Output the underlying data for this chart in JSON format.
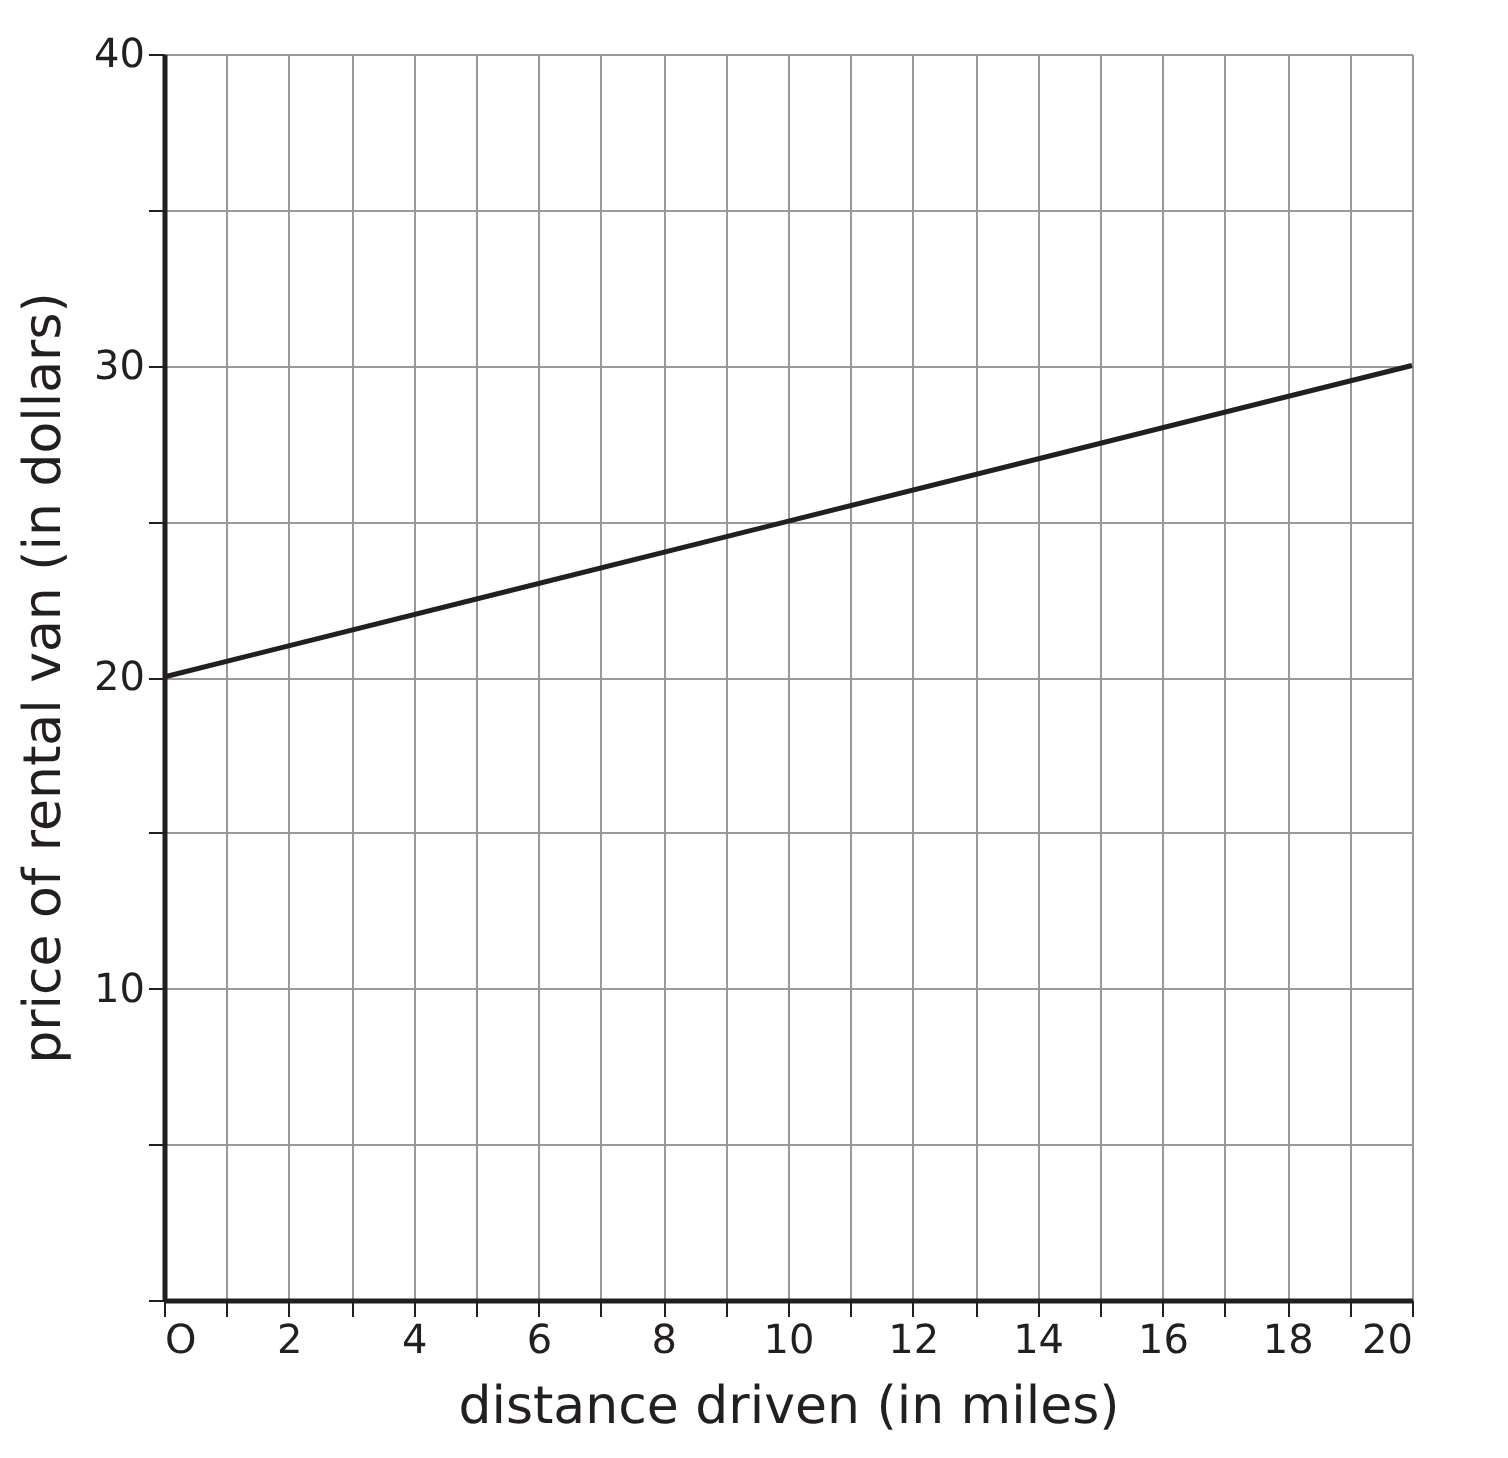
{
  "chart_data": {
    "type": "line",
    "xlabel": "distance driven (in miles)",
    "ylabel": "price of rental van (in dollars)",
    "x": [
      0,
      20
    ],
    "series": [
      {
        "color": "#231f20",
        "values": [
          20,
          30
        ]
      }
    ],
    "xlim": [
      0,
      20
    ],
    "ylim": [
      0,
      40
    ],
    "xticks": [
      {
        "value": 0,
        "label": "O"
      },
      {
        "value": 1,
        "label": null
      },
      2,
      {
        "value": 3,
        "label": null
      },
      4,
      {
        "value": 5,
        "label": null
      },
      6,
      {
        "value": 7,
        "label": null
      },
      8,
      {
        "value": 9,
        "label": null
      },
      10,
      {
        "value": 11,
        "label": null
      },
      12,
      {
        "value": 13,
        "label": null
      },
      14,
      {
        "value": 15,
        "label": null
      },
      16,
      {
        "value": 17,
        "label": null
      },
      18,
      {
        "value": 19,
        "label": null
      },
      20
    ],
    "yticks": [
      {
        "value": 0,
        "label": null
      },
      {
        "value": 5,
        "label": null
      },
      10,
      {
        "value": 15,
        "label": null
      },
      20,
      {
        "value": 25,
        "label": null
      },
      30,
      {
        "value": 35,
        "label": null
      },
      40
    ],
    "grid": true,
    "marker": "none",
    "line_style": "solid"
  }
}
